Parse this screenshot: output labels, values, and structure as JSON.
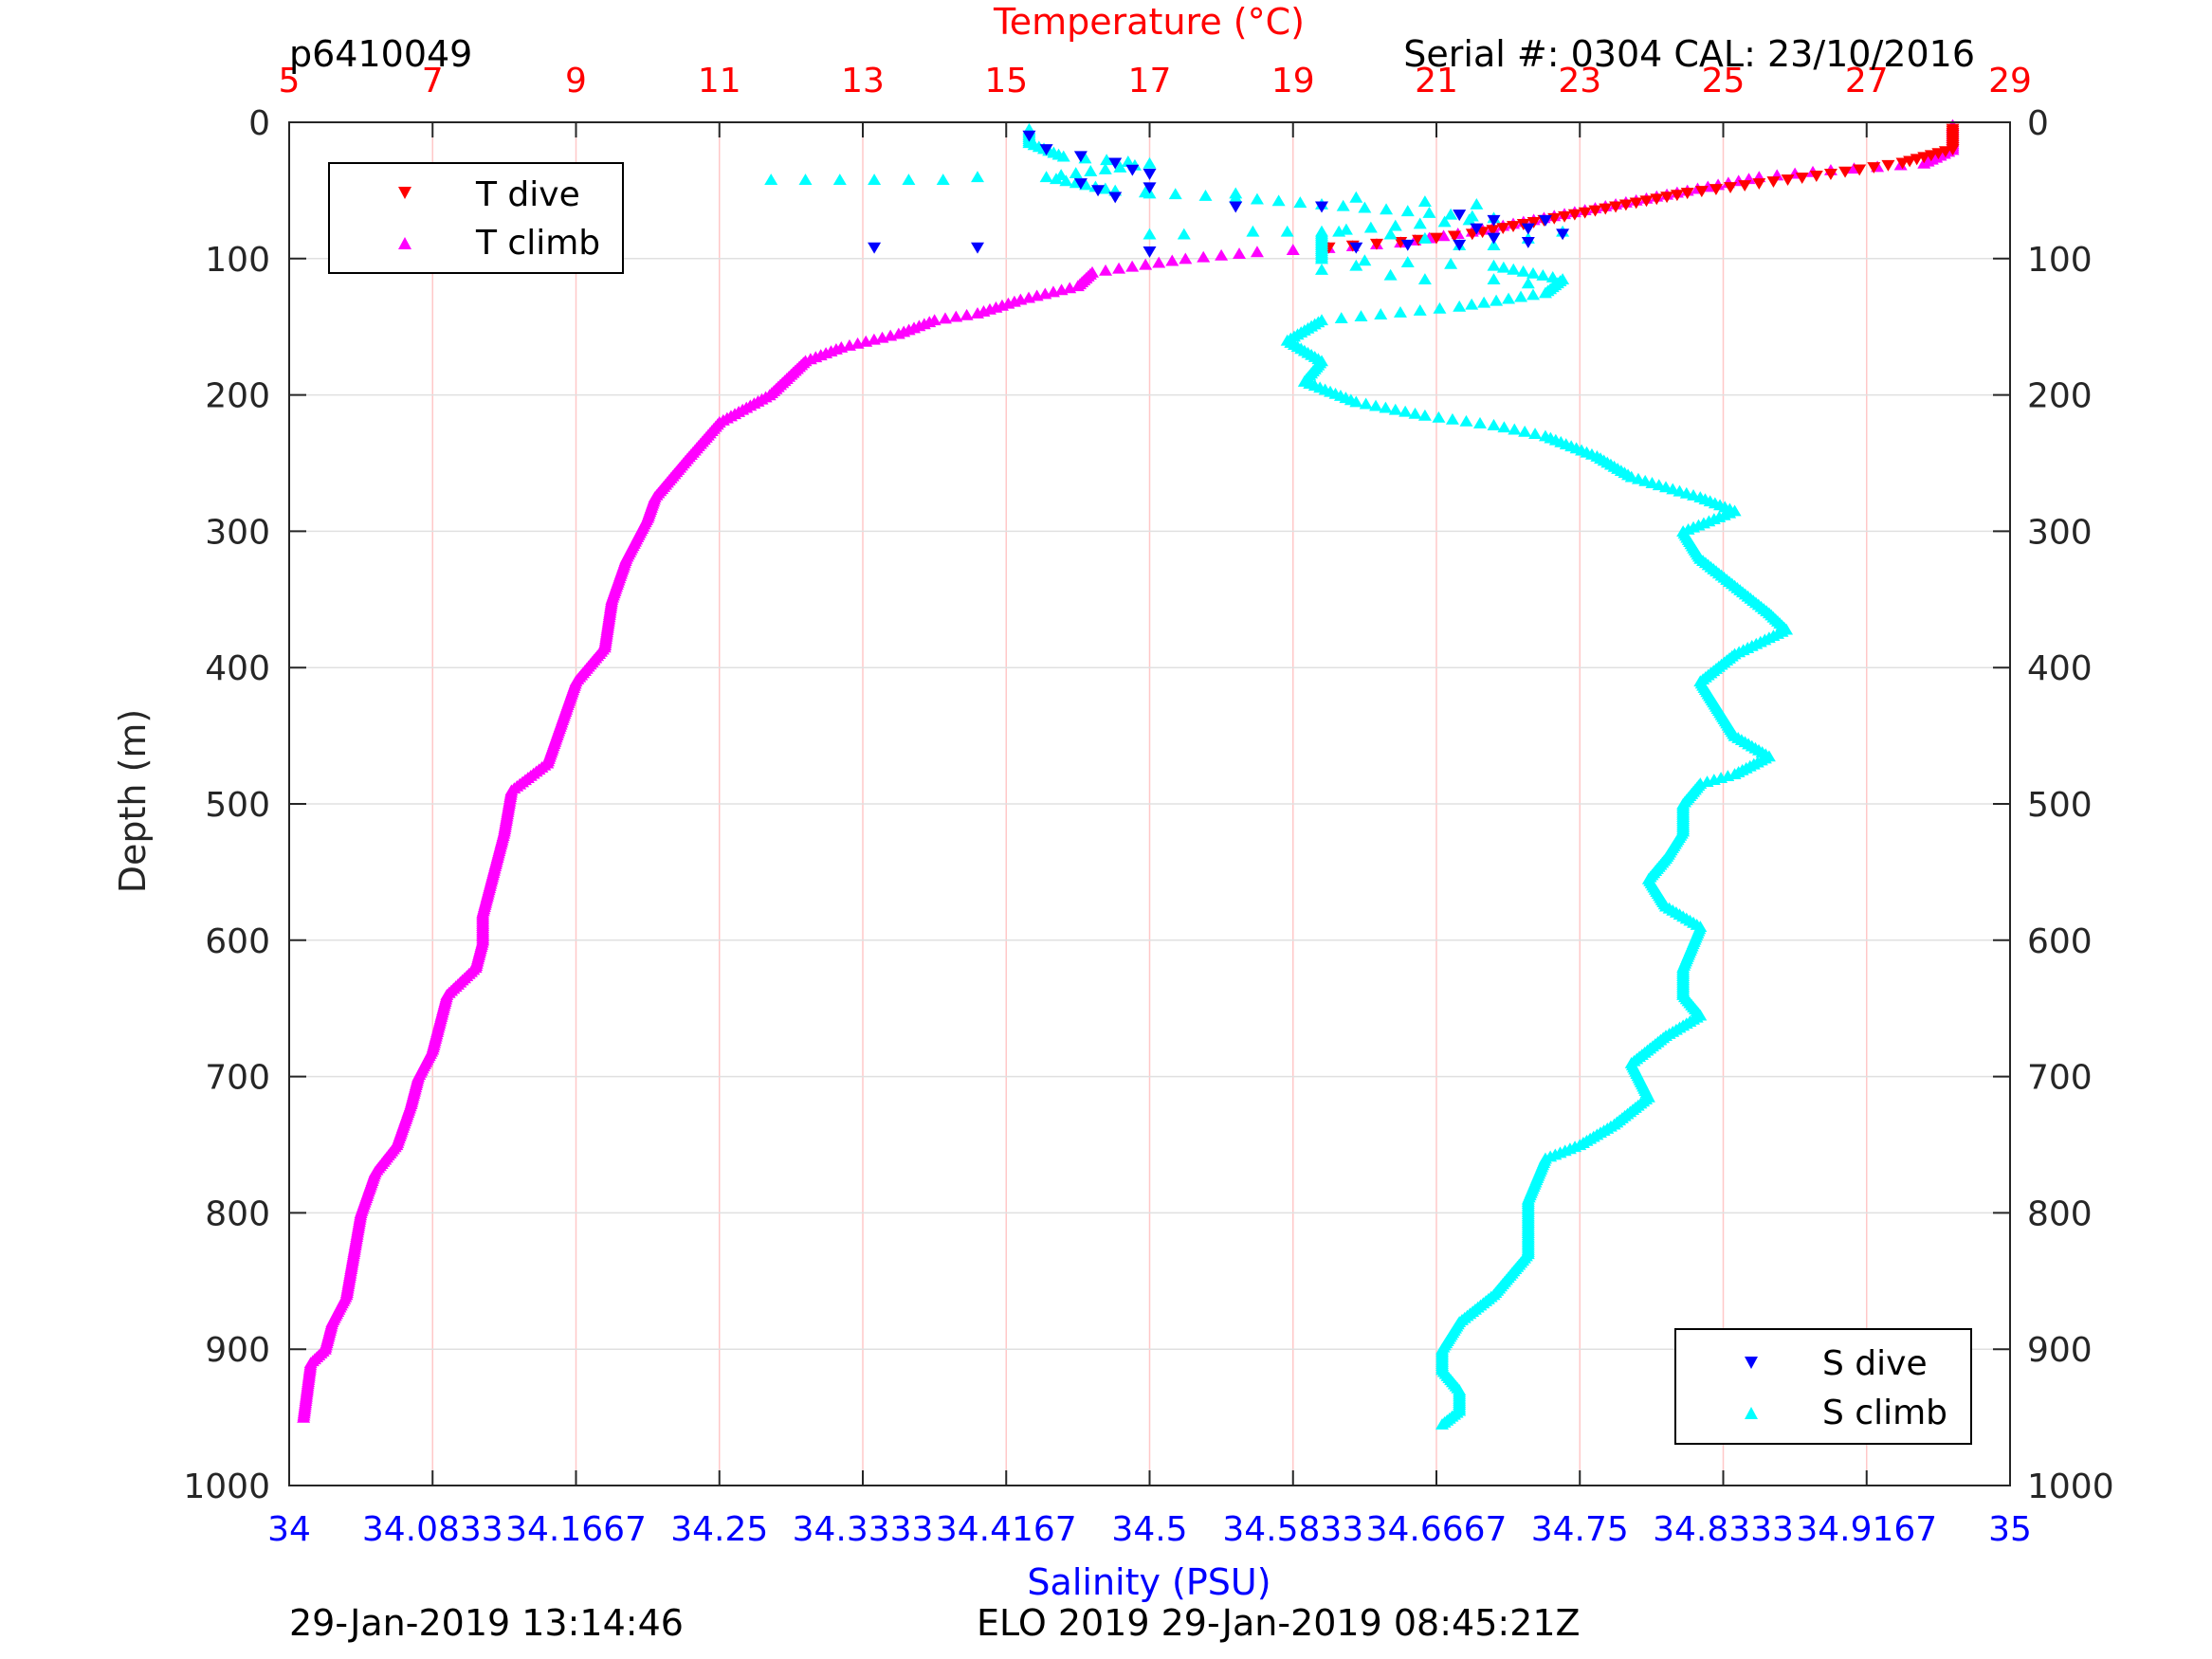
{
  "header": {
    "profile_id": "p6410049",
    "serial_info": "Serial #: 0304  CAL: 23/10/2016"
  },
  "footer": {
    "left_timestamp": "29-Jan-2019 13:14:46",
    "center_label": "ELO 2019 29-Jan-2019 08:45:21Z"
  },
  "colors": {
    "temperature_axis": "#ff0000",
    "salinity_axis": "#0000ff",
    "t_dive": "#ff0000",
    "t_climb": "#ff00ff",
    "s_dive": "#0000ff",
    "s_dive_dark": "#00008b",
    "s_climb": "#00ffff",
    "grid_temp": "#ffc8c8",
    "grid_depth": "#e0e0e0"
  },
  "chart_data": {
    "type": "scatter",
    "ylabel": "Depth (m)",
    "y_reversed": true,
    "ylim": [
      0,
      1000
    ],
    "yticks": [
      "0",
      "100",
      "200",
      "300",
      "400",
      "500",
      "600",
      "700",
      "800",
      "900",
      "1000"
    ],
    "temperature_axis": {
      "label": "Temperature (°C)",
      "position": "top",
      "lim": [
        5,
        29
      ],
      "ticks": [
        "5",
        "7",
        "9",
        "11",
        "13",
        "15",
        "17",
        "19",
        "21",
        "23",
        "25",
        "27",
        "29"
      ]
    },
    "salinity_axis": {
      "label": "Salinity (PSU)",
      "position": "bottom",
      "lim": [
        34,
        35
      ],
      "ticks": [
        "34",
        "34.0833",
        "34.1667",
        "34.25",
        "34.3333",
        "34.4167",
        "34.5",
        "34.5833",
        "34.6667",
        "34.75",
        "34.8333",
        "34.9167",
        "35"
      ]
    },
    "legend_temperature": {
      "placement": "top-left",
      "entries": [
        "T dive",
        "T climb"
      ]
    },
    "legend_salinity": {
      "placement": "bottom-right",
      "entries": [
        "S dive",
        "S climb"
      ]
    },
    "series": [
      {
        "name": "T climb",
        "axis": "temperature",
        "marker": "triangle-up",
        "color": "#ff00ff",
        "profile": [
          [
            28.2,
            2
          ],
          [
            28.2,
            10
          ],
          [
            28.2,
            20
          ],
          [
            27.8,
            30
          ],
          [
            26.5,
            35
          ],
          [
            25.5,
            40
          ],
          [
            24.5,
            50
          ],
          [
            23.5,
            60
          ],
          [
            22.5,
            70
          ],
          [
            21.5,
            80
          ],
          [
            20.5,
            88
          ],
          [
            19.5,
            92
          ],
          [
            18.5,
            95
          ],
          [
            17.5,
            100
          ],
          [
            16.2,
            110
          ],
          [
            16.0,
            120
          ],
          [
            15.2,
            130
          ],
          [
            14.6,
            140
          ],
          [
            14.0,
            145
          ],
          [
            13.5,
            155
          ],
          [
            12.7,
            165
          ],
          [
            12.2,
            175
          ],
          [
            12.0,
            185
          ],
          [
            11.7,
            200
          ],
          [
            11.0,
            220
          ],
          [
            10.5,
            250
          ],
          [
            10.1,
            275
          ],
          [
            10.0,
            290
          ],
          [
            9.7,
            320
          ],
          [
            9.5,
            350
          ],
          [
            9.4,
            385
          ],
          [
            9.0,
            410
          ],
          [
            8.8,
            440
          ],
          [
            8.6,
            470
          ],
          [
            8.1,
            490
          ],
          [
            8.0,
            520
          ],
          [
            7.8,
            560
          ],
          [
            7.7,
            580
          ],
          [
            7.7,
            600
          ],
          [
            7.6,
            620
          ],
          [
            7.2,
            640
          ],
          [
            7.0,
            680
          ],
          [
            6.8,
            700
          ],
          [
            6.7,
            720
          ],
          [
            6.5,
            750
          ],
          [
            6.2,
            770
          ],
          [
            6.0,
            800
          ],
          [
            5.9,
            830
          ],
          [
            5.8,
            860
          ],
          [
            5.6,
            880
          ],
          [
            5.5,
            900
          ],
          [
            5.3,
            910
          ],
          [
            5.25,
            930
          ],
          [
            5.2,
            950
          ]
        ],
        "scatter": []
      },
      {
        "name": "T dive",
        "axis": "temperature",
        "marker": "triangle-down",
        "color": "#ff0000",
        "profile": [
          [
            28.2,
            5
          ],
          [
            28.2,
            20
          ],
          [
            27.5,
            30
          ],
          [
            26.5,
            38
          ],
          [
            25.5,
            45
          ],
          [
            24.5,
            52
          ],
          [
            23.5,
            62
          ],
          [
            22.5,
            72
          ],
          [
            21.5,
            82
          ],
          [
            20.5,
            88
          ],
          [
            19.5,
            92
          ]
        ],
        "scatter": []
      },
      {
        "name": "S climb",
        "axis": "salinity",
        "marker": "triangle-up",
        "color": "#00ffff",
        "profile": [
          [
            34.43,
            5
          ],
          [
            34.43,
            15
          ],
          [
            34.45,
            25
          ],
          [
            34.5,
            30
          ],
          [
            34.44,
            40
          ],
          [
            34.48,
            50
          ],
          [
            34.55,
            55
          ],
          [
            34.6,
            60
          ],
          [
            34.65,
            65
          ],
          [
            34.7,
            70
          ],
          [
            34.6,
            80
          ],
          [
            34.6,
            90
          ],
          [
            34.6,
            100
          ],
          [
            34.7,
            105
          ],
          [
            34.74,
            115
          ],
          [
            34.73,
            125
          ],
          [
            34.68,
            135
          ],
          [
            34.6,
            145
          ],
          [
            34.58,
            160
          ],
          [
            34.6,
            175
          ],
          [
            34.59,
            190
          ],
          [
            34.62,
            205
          ],
          [
            34.66,
            215
          ],
          [
            34.7,
            222
          ],
          [
            34.73,
            230
          ],
          [
            34.76,
            245
          ],
          [
            34.78,
            260
          ],
          [
            34.82,
            275
          ],
          [
            34.84,
            285
          ],
          [
            34.81,
            300
          ],
          [
            34.82,
            320
          ],
          [
            34.84,
            340
          ],
          [
            34.86,
            360
          ],
          [
            34.87,
            372
          ],
          [
            34.84,
            390
          ],
          [
            34.82,
            410
          ],
          [
            34.83,
            430
          ],
          [
            34.84,
            450
          ],
          [
            34.86,
            465
          ],
          [
            34.84,
            478
          ],
          [
            34.82,
            485
          ],
          [
            34.81,
            500
          ],
          [
            34.81,
            520
          ],
          [
            34.8,
            540
          ],
          [
            34.79,
            555
          ],
          [
            34.8,
            575
          ],
          [
            34.82,
            590
          ],
          [
            34.81,
            620
          ],
          [
            34.81,
            640
          ],
          [
            34.82,
            655
          ],
          [
            34.8,
            670
          ],
          [
            34.78,
            690
          ],
          [
            34.79,
            715
          ],
          [
            34.77,
            735
          ],
          [
            34.75,
            750
          ],
          [
            34.73,
            760
          ],
          [
            34.72,
            790
          ],
          [
            34.72,
            810
          ],
          [
            34.72,
            830
          ],
          [
            34.7,
            860
          ],
          [
            34.68,
            880
          ],
          [
            34.67,
            900
          ],
          [
            34.67,
            915
          ],
          [
            34.68,
            930
          ],
          [
            34.68,
            945
          ],
          [
            34.67,
            955
          ]
        ],
        "scatter": [
          [
            34.28,
            42
          ],
          [
            34.3,
            42
          ],
          [
            34.32,
            42
          ],
          [
            34.34,
            42
          ],
          [
            34.36,
            42
          ],
          [
            34.38,
            42
          ],
          [
            34.4,
            40
          ],
          [
            34.5,
            52
          ],
          [
            34.55,
            52
          ],
          [
            34.62,
            55
          ],
          [
            34.66,
            58
          ],
          [
            34.69,
            60
          ],
          [
            34.5,
            82
          ],
          [
            34.52,
            82
          ],
          [
            34.56,
            80
          ],
          [
            34.58,
            80
          ],
          [
            34.61,
            80
          ],
          [
            34.64,
            82
          ],
          [
            34.66,
            85
          ],
          [
            34.68,
            90
          ],
          [
            34.7,
            90
          ],
          [
            34.72,
            85
          ],
          [
            34.74,
            80
          ],
          [
            34.6,
            108
          ],
          [
            34.62,
            105
          ],
          [
            34.64,
            112
          ],
          [
            34.66,
            115
          ],
          [
            34.7,
            115
          ],
          [
            34.72,
            118
          ]
        ]
      },
      {
        "name": "S dive",
        "axis": "salinity",
        "marker": "triangle-down",
        "color": "#0000ff",
        "profile": [],
        "scatter": [
          [
            34.43,
            10
          ],
          [
            34.44,
            20
          ],
          [
            34.46,
            25
          ],
          [
            34.48,
            30
          ],
          [
            34.49,
            35
          ],
          [
            34.5,
            38
          ],
          [
            34.46,
            45
          ],
          [
            34.47,
            50
          ],
          [
            34.48,
            55
          ],
          [
            34.5,
            48
          ],
          [
            34.55,
            62
          ],
          [
            34.6,
            62
          ],
          [
            34.68,
            68
          ],
          [
            34.7,
            72
          ],
          [
            34.73,
            72
          ],
          [
            34.74,
            82
          ],
          [
            34.72,
            88
          ],
          [
            34.7,
            85
          ],
          [
            34.68,
            90
          ],
          [
            34.65,
            90
          ],
          [
            34.62,
            92
          ],
          [
            34.34,
            92
          ],
          [
            34.4,
            92
          ],
          [
            34.5,
            95
          ],
          [
            34.72,
            78
          ],
          [
            34.69,
            78
          ]
        ]
      }
    ]
  }
}
